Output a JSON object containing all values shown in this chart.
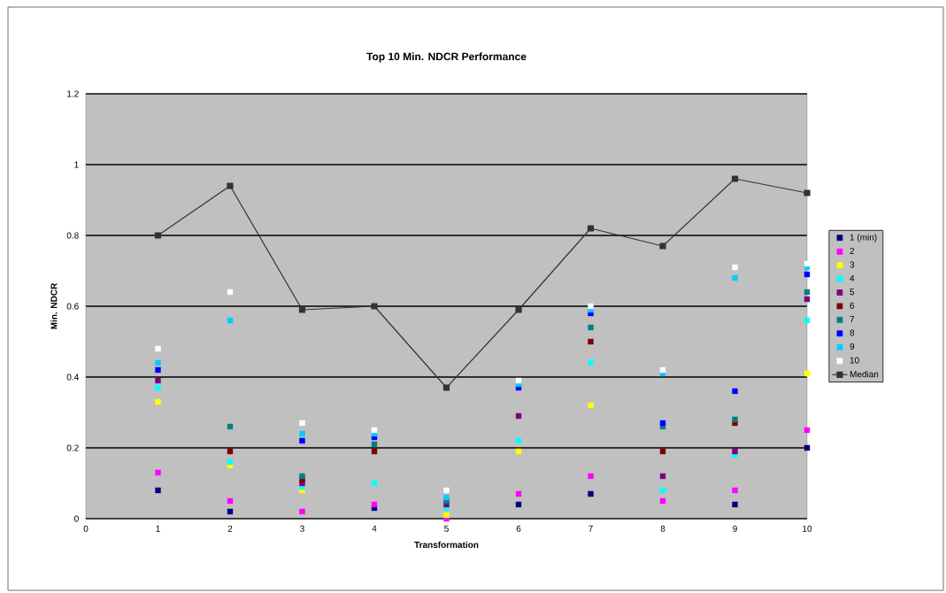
{
  "chart_data": {
    "type": "scatter",
    "title": "Top 10 Min. NDCR Performance",
    "xlabel": "Transformation",
    "ylabel": "Min. NDCR",
    "x": [
      1,
      2,
      3,
      4,
      5,
      6,
      7,
      8,
      9,
      10
    ],
    "series": [
      {
        "name": "1 (min)",
        "color": "#000080",
        "values": [
          0.08,
          0.02,
          null,
          0.03,
          null,
          0.04,
          0.07,
          null,
          0.04,
          0.2
        ]
      },
      {
        "name": "2",
        "color": "#ff00ff",
        "values": [
          0.13,
          0.05,
          0.02,
          0.04,
          0.0,
          0.07,
          0.12,
          0.05,
          0.08,
          0.25
        ]
      },
      {
        "name": "3",
        "color": "#ffff00",
        "values": [
          0.33,
          0.15,
          0.08,
          null,
          0.01,
          0.19,
          0.32,
          null,
          null,
          0.41
        ]
      },
      {
        "name": "4",
        "color": "#00ffff",
        "values": [
          0.37,
          0.16,
          0.09,
          0.1,
          0.03,
          0.22,
          0.44,
          0.08,
          0.18,
          0.56
        ]
      },
      {
        "name": "5",
        "color": "#800080",
        "values": [
          0.39,
          null,
          0.1,
          null,
          0.04,
          0.29,
          null,
          0.12,
          0.19,
          0.62
        ]
      },
      {
        "name": "6",
        "color": "#800000",
        "values": [
          null,
          0.19,
          0.11,
          0.19,
          null,
          null,
          0.5,
          0.19,
          0.27,
          null
        ]
      },
      {
        "name": "7",
        "color": "#008080",
        "values": [
          null,
          0.26,
          0.12,
          0.21,
          0.05,
          null,
          0.54,
          0.26,
          0.28,
          0.64
        ]
      },
      {
        "name": "8",
        "color": "#0000ff",
        "values": [
          0.42,
          null,
          0.22,
          0.23,
          null,
          0.37,
          0.58,
          0.27,
          0.36,
          0.69
        ]
      },
      {
        "name": "9",
        "color": "#00ccff",
        "values": [
          0.44,
          0.56,
          0.24,
          0.24,
          0.06,
          0.38,
          0.59,
          0.41,
          0.68,
          0.71
        ]
      },
      {
        "name": "10",
        "color": "#ffffff",
        "values": [
          0.48,
          0.64,
          0.27,
          0.25,
          0.08,
          0.39,
          0.6,
          0.42,
          0.71,
          0.72
        ]
      },
      {
        "name": "Median",
        "color": "#333333",
        "type": "line",
        "values": [
          0.8,
          0.94,
          0.59,
          0.6,
          0.37,
          0.59,
          0.82,
          0.77,
          0.96,
          0.92
        ]
      }
    ],
    "xlim": [
      0,
      10
    ],
    "xticks": [
      0,
      1,
      2,
      3,
      4,
      5,
      6,
      7,
      8,
      9,
      10
    ],
    "ylim": [
      0,
      1.2
    ],
    "yticks": [
      0,
      0.2,
      0.4,
      0.6,
      0.8,
      1,
      1.2
    ],
    "grid": "y",
    "legend": "right",
    "marker": "square"
  }
}
